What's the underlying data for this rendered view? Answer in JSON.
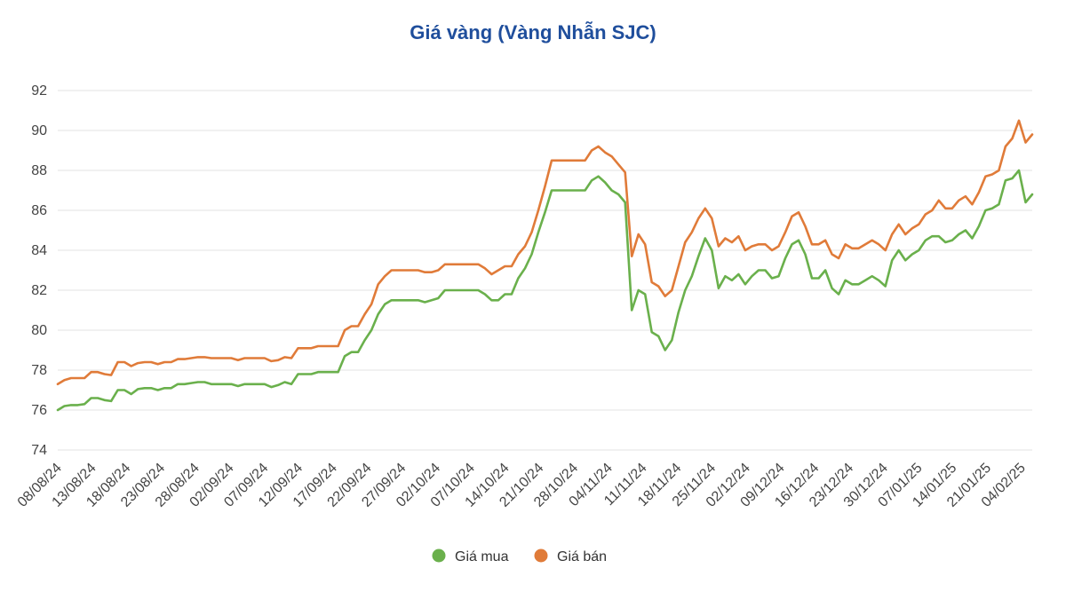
{
  "chart_data": {
    "type": "line",
    "title": "Giá vàng (Vàng Nhẫn SJC)",
    "xlabel": "",
    "ylabel": "",
    "ylim": [
      74,
      92
    ],
    "yticks": [
      74,
      76,
      78,
      80,
      82,
      84,
      86,
      88,
      90,
      92
    ],
    "grid": true,
    "legend": "bottom-center",
    "x_tick_labels": [
      "08/08/24",
      "13/08/24",
      "18/08/24",
      "23/08/24",
      "28/08/24",
      "02/09/24",
      "07/09/24",
      "12/09/24",
      "17/09/24",
      "22/09/24",
      "27/09/24",
      "02/10/24",
      "07/10/24",
      "14/10/24",
      "21/10/24",
      "28/10/24",
      "04/11/24",
      "11/11/24",
      "18/11/24",
      "25/11/24",
      "02/12/24",
      "09/12/24",
      "16/12/24",
      "23/12/24",
      "30/12/24",
      "07/01/25",
      "14/01/25",
      "21/01/25",
      "04/02/25"
    ],
    "series": [
      {
        "name": "Giá mua",
        "color": "#6ab04c",
        "values": [
          76.0,
          76.2,
          76.25,
          76.25,
          76.3,
          76.6,
          76.6,
          76.5,
          76.45,
          77.0,
          77.0,
          76.8,
          77.05,
          77.1,
          77.1,
          77.0,
          77.1,
          77.1,
          77.3,
          77.3,
          77.35,
          77.4,
          77.4,
          77.3,
          77.3,
          77.3,
          77.3,
          77.2,
          77.3,
          77.3,
          77.3,
          77.3,
          77.15,
          77.25,
          77.4,
          77.3,
          77.8,
          77.8,
          77.8,
          77.9,
          77.9,
          77.9,
          77.9,
          78.7,
          78.9,
          78.9,
          79.5,
          80.0,
          80.8,
          81.3,
          81.5,
          81.5,
          81.5,
          81.5,
          81.5,
          81.4,
          81.5,
          81.6,
          82.0,
          82.0,
          82.0,
          82.0,
          82.0,
          82.0,
          81.8,
          81.5,
          81.5,
          81.8,
          81.8,
          82.6,
          83.1,
          83.8,
          84.9,
          85.9,
          87.0,
          87.0,
          87.0,
          87.0,
          87.0,
          87.0,
          87.5,
          87.7,
          87.4,
          87.0,
          86.8,
          86.4,
          81.0,
          82.0,
          81.8,
          79.9,
          79.7,
          79.0,
          79.5,
          80.9,
          82.0,
          82.7,
          83.7,
          84.6,
          84.0,
          82.1,
          82.7,
          82.5,
          82.8,
          82.3,
          82.7,
          83.0,
          83.0,
          82.6,
          82.7,
          83.6,
          84.3,
          84.5,
          83.8,
          82.6,
          82.6,
          83.0,
          82.1,
          81.8,
          82.5,
          82.3,
          82.3,
          82.5,
          82.7,
          82.5,
          82.2,
          83.5,
          84.0,
          83.5,
          83.8,
          84.0,
          84.5,
          84.7,
          84.7,
          84.4,
          84.5,
          84.8,
          85.0,
          84.6,
          85.2,
          86.0,
          86.1,
          86.3,
          87.5,
          87.6,
          88.0,
          86.4,
          86.8
        ]
      },
      {
        "name": "Giá bán",
        "color": "#e07b39",
        "values": [
          77.3,
          77.5,
          77.6,
          77.6,
          77.6,
          77.9,
          77.9,
          77.8,
          77.75,
          78.4,
          78.4,
          78.2,
          78.35,
          78.4,
          78.4,
          78.3,
          78.4,
          78.4,
          78.55,
          78.55,
          78.6,
          78.65,
          78.65,
          78.6,
          78.6,
          78.6,
          78.6,
          78.5,
          78.6,
          78.6,
          78.6,
          78.6,
          78.45,
          78.5,
          78.65,
          78.6,
          79.1,
          79.1,
          79.1,
          79.2,
          79.2,
          79.2,
          79.2,
          80.0,
          80.2,
          80.2,
          80.8,
          81.3,
          82.3,
          82.7,
          83.0,
          83.0,
          83.0,
          83.0,
          83.0,
          82.9,
          82.9,
          83.0,
          83.3,
          83.3,
          83.3,
          83.3,
          83.3,
          83.3,
          83.1,
          82.8,
          83.0,
          83.2,
          83.2,
          83.8,
          84.2,
          84.9,
          86.0,
          87.2,
          88.5,
          88.5,
          88.5,
          88.5,
          88.5,
          88.5,
          89.0,
          89.2,
          88.9,
          88.7,
          88.3,
          87.9,
          83.7,
          84.8,
          84.3,
          82.4,
          82.2,
          81.7,
          82.0,
          83.2,
          84.4,
          84.9,
          85.6,
          86.1,
          85.6,
          84.2,
          84.6,
          84.4,
          84.7,
          84.0,
          84.2,
          84.3,
          84.3,
          84.0,
          84.2,
          84.9,
          85.7,
          85.9,
          85.2,
          84.3,
          84.3,
          84.5,
          83.8,
          83.6,
          84.3,
          84.1,
          84.1,
          84.3,
          84.5,
          84.3,
          84.0,
          84.8,
          85.3,
          84.8,
          85.1,
          85.3,
          85.8,
          86.0,
          86.5,
          86.1,
          86.1,
          86.5,
          86.7,
          86.3,
          86.9,
          87.7,
          87.8,
          88.0,
          89.2,
          89.6,
          90.5,
          89.4,
          89.8
        ]
      }
    ]
  }
}
